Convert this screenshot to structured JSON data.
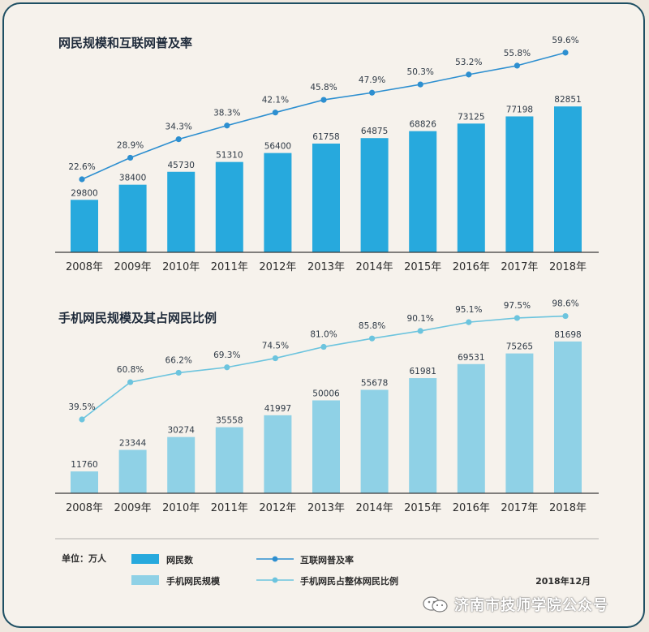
{
  "chart_data": [
    {
      "type": "bar",
      "title": "网民规模和互联网普及率",
      "categories": [
        "2008年",
        "2009年",
        "2010年",
        "2011年",
        "2012年",
        "2013年",
        "2014年",
        "2015年",
        "2016年",
        "2017年",
        "2018年"
      ],
      "series": [
        {
          "name": "网民数",
          "type": "bar",
          "values": [
            29800,
            38400,
            45730,
            51310,
            56400,
            61758,
            64875,
            68826,
            73125,
            77198,
            82851
          ],
          "color": "#27a9dd"
        },
        {
          "name": "互联网普及率",
          "type": "line",
          "values": [
            22.6,
            28.9,
            34.3,
            38.3,
            42.1,
            45.8,
            47.9,
            50.3,
            53.2,
            55.8,
            59.6
          ],
          "labels": [
            "22.6%",
            "28.9%",
            "34.3%",
            "38.3%",
            "42.1%",
            "45.8%",
            "47.9%",
            "50.3%",
            "53.2%",
            "55.8%",
            "59.6%"
          ],
          "color": "#2d8fd0"
        }
      ]
    },
    {
      "type": "bar",
      "title": "手机网民规模及其占网民比例",
      "categories": [
        "2008年",
        "2009年",
        "2010年",
        "2011年",
        "2012年",
        "2013年",
        "2014年",
        "2015年",
        "2016年",
        "2017年",
        "2018年"
      ],
      "series": [
        {
          "name": "手机网民规模",
          "type": "bar",
          "values": [
            11760,
            23344,
            30274,
            35558,
            41997,
            50006,
            55678,
            61981,
            69531,
            75265,
            81698
          ],
          "color": "#8fd1e6"
        },
        {
          "name": "手机网民占整体网民比例",
          "type": "line",
          "values": [
            39.5,
            60.8,
            66.2,
            69.3,
            74.5,
            81.0,
            85.8,
            90.1,
            95.1,
            97.5,
            98.6
          ],
          "labels": [
            "39.5%",
            "60.8%",
            "66.2%",
            "69.3%",
            "74.5%",
            "81.0%",
            "85.8%",
            "90.1%",
            "95.1%",
            "97.5%",
            "98.6%"
          ],
          "color": "#6cc4de"
        }
      ]
    }
  ],
  "legend": {
    "unit": "单位：万人",
    "items": [
      {
        "label": "网民数",
        "kind": "bar",
        "color": "#27a9dd"
      },
      {
        "label": "互联网普及率",
        "kind": "line",
        "color": "#2d8fd0"
      },
      {
        "label": "手机网民规模",
        "kind": "bar",
        "color": "#8fd1e6"
      },
      {
        "label": "手机网民占整体网民比例",
        "kind": "line",
        "color": "#6cc4de"
      }
    ],
    "date": "2018年12月"
  },
  "watermark": {
    "text": "济南市技师学院公众号",
    "icon": "wechat-icon"
  }
}
